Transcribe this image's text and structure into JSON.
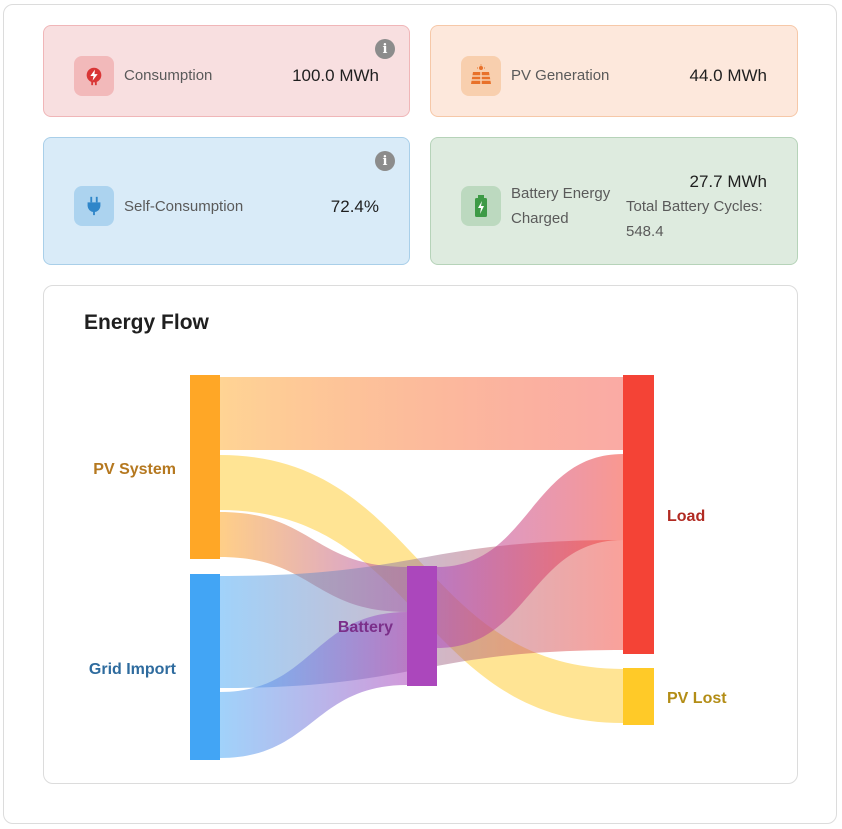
{
  "cards": {
    "consumption": {
      "label": "Consumption",
      "value": "100.0 MWh",
      "icon": "plug-bolt-icon",
      "icon_color": "#d93636",
      "icon_bg": "#f2b9ba"
    },
    "pv_generation": {
      "label": "PV Generation",
      "value": "44.0 MWh",
      "icon": "solar-panel-icon",
      "icon_color": "#e8712a",
      "icon_bg": "#f8cfae"
    },
    "self_consumption": {
      "label": "Self-Consumption",
      "value": "72.4%",
      "icon": "plug-icon",
      "icon_color": "#2f86c9",
      "icon_bg": "#acd3ef"
    },
    "battery": {
      "label_line1": "Battery Energy",
      "label_line2": "Charged",
      "value": "27.7 MWh",
      "cycles_label": "Total Battery Cycles:",
      "cycles_value": "548.4",
      "icon": "battery-charging-icon",
      "icon_color": "#3d9a46",
      "icon_bg": "#bcd9bf"
    }
  },
  "energy_flow": {
    "title": "Energy Flow",
    "nodes": [
      {
        "id": "pv",
        "label": "PV System",
        "color": "#ffa726",
        "label_color": "#b5781f"
      },
      {
        "id": "grid",
        "label": "Grid Import",
        "color": "#42a5f5",
        "label_color": "#2e6b9e"
      },
      {
        "id": "battery",
        "label": "Battery",
        "color": "#ab47bc",
        "label_color": "#7b2f8a"
      },
      {
        "id": "load",
        "label": "Load",
        "color": "#f44336",
        "label_color": "#b12a22"
      },
      {
        "id": "pvlost",
        "label": "PV Lost",
        "color": "#ffca28",
        "label_color": "#b38d16"
      }
    ]
  }
}
